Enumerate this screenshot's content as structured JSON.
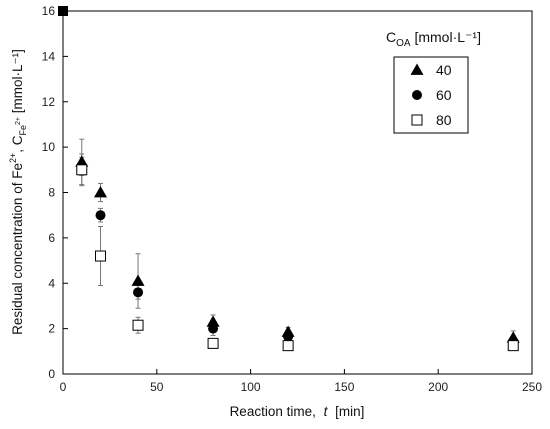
{
  "chart_data": {
    "type": "scatter",
    "xlabel": "Reaction time,",
    "xlabel_var": "t",
    "xlabel_unit": "[min]",
    "ylabel_prefix": "Residual concentration of  Fe",
    "ylabel_sup1": "2+",
    "ylabel_mid": ",  C",
    "ylabel_sub": "Fe",
    "ylabel_subsup": "2+",
    "ylabel_unit": "  [mmol·L⁻¹]",
    "xlim": [
      0,
      250
    ],
    "ylim": [
      0,
      16
    ],
    "xticks": [
      0,
      50,
      100,
      150,
      200,
      250
    ],
    "yticks": [
      0,
      2,
      4,
      6,
      8,
      10,
      12,
      14,
      16
    ],
    "grid": false,
    "legend_title_main": "C",
    "legend_title_sub": "OA",
    "legend_title_unit": " [mmol·L⁻¹]",
    "legend_position": "top-right",
    "initial_point": {
      "x": 0,
      "y": 16
    },
    "series": [
      {
        "name": "40",
        "marker": "triangle",
        "points": [
          {
            "x": 10,
            "y": 9.35,
            "err": 1.0
          },
          {
            "x": 20,
            "y": 8.0,
            "err": 0.4
          },
          {
            "x": 40,
            "y": 4.1,
            "err": 1.2
          },
          {
            "x": 80,
            "y": 2.3,
            "err": 0.3
          },
          {
            "x": 120,
            "y": 1.85,
            "err": 0.2
          },
          {
            "x": 240,
            "y": 1.6,
            "err": 0.3
          }
        ]
      },
      {
        "name": "60",
        "marker": "circle",
        "points": [
          {
            "x": 10,
            "y": 9.15,
            "err": 0.4
          },
          {
            "x": 20,
            "y": 7.0,
            "err": 0.3
          },
          {
            "x": 40,
            "y": 3.6,
            "err": 0.3
          },
          {
            "x": 80,
            "y": 2.0,
            "err": 0.3
          },
          {
            "x": 120,
            "y": 1.65,
            "err": 0.2
          },
          {
            "x": 240,
            "y": 1.45,
            "err": 0.2
          }
        ]
      },
      {
        "name": "80",
        "marker": "square-open",
        "points": [
          {
            "x": 10,
            "y": 9.0,
            "err": 0.7
          },
          {
            "x": 20,
            "y": 5.2,
            "err": 1.3
          },
          {
            "x": 40,
            "y": 2.15,
            "err": 0.35
          },
          {
            "x": 80,
            "y": 1.35,
            "err": 0.1
          },
          {
            "x": 120,
            "y": 1.25,
            "err": 0.1
          },
          {
            "x": 240,
            "y": 1.25,
            "err": 0.1
          }
        ]
      }
    ]
  }
}
